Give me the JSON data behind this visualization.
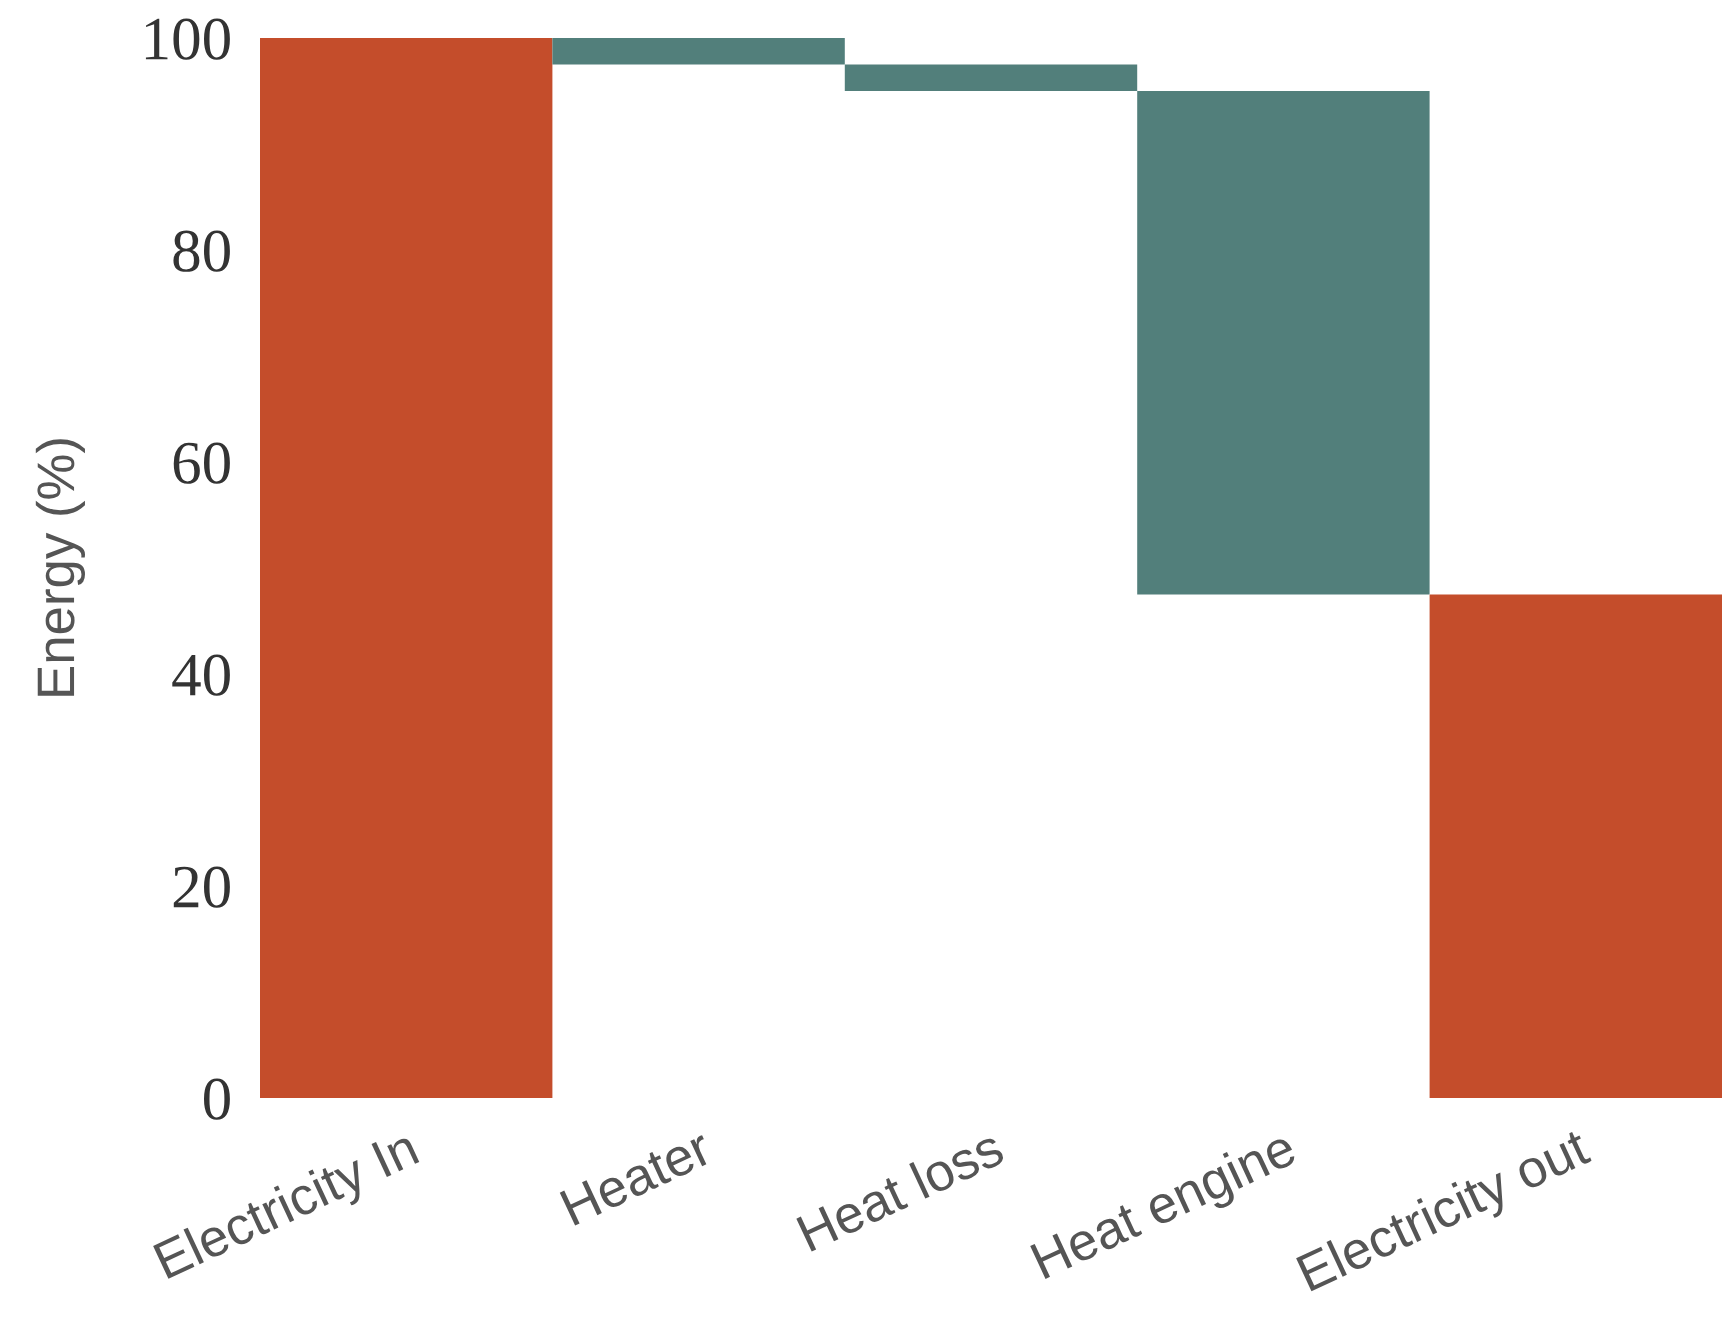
{
  "chart_data": {
    "type": "bar",
    "ylabel": "Energy (%)",
    "categories": [
      "Electricity In",
      "Heater",
      "Heat loss",
      "Heat engine",
      "Electricity out"
    ],
    "values": [
      100,
      2.5,
      2.5,
      47.5,
      47.5
    ],
    "base": [
      0,
      97.5,
      95,
      47.5,
      0
    ],
    "colors": [
      "#c44d2b",
      "#527f7b",
      "#527f7b",
      "#527f7b",
      "#c44d2b"
    ],
    "ylim": [
      0,
      100
    ],
    "yticks": [
      0,
      20,
      40,
      60,
      80,
      100
    ],
    "grid": false,
    "legend": false
  }
}
